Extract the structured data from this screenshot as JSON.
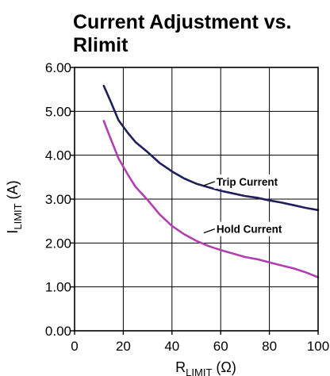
{
  "chart_data": {
    "type": "line",
    "title": "Current Adjustment vs. Rlimit",
    "xlabel": {
      "main": "R",
      "sub": "LIMIT",
      "unit": "(Ω)"
    },
    "ylabel": {
      "main": "I",
      "sub": "LIMIT",
      "unit": "(A)"
    },
    "xlim": [
      0,
      100
    ],
    "ylim": [
      0,
      6
    ],
    "x_ticks": [
      "0",
      "20",
      "40",
      "60",
      "80",
      "100"
    ],
    "y_ticks": [
      "0.00",
      "1.00",
      "2.00",
      "3.00",
      "4.00",
      "5.00",
      "6.00"
    ],
    "x_tick_values": [
      0,
      20,
      40,
      60,
      80,
      100
    ],
    "y_tick_values": [
      0,
      1,
      2,
      3,
      4,
      5,
      6
    ],
    "grid": true,
    "series": [
      {
        "name": "Trip Current",
        "color": "#1f1f5c",
        "label_at": [
          55,
          3.4
        ],
        "points": [
          [
            12,
            5.58
          ],
          [
            15,
            5.2
          ],
          [
            18,
            4.8
          ],
          [
            22,
            4.5
          ],
          [
            25,
            4.3
          ],
          [
            30,
            4.07
          ],
          [
            35,
            3.82
          ],
          [
            40,
            3.63
          ],
          [
            45,
            3.47
          ],
          [
            50,
            3.35
          ],
          [
            55,
            3.27
          ],
          [
            60,
            3.19
          ],
          [
            65,
            3.13
          ],
          [
            70,
            3.07
          ],
          [
            75,
            3.03
          ],
          [
            80,
            2.97
          ],
          [
            85,
            2.92
          ],
          [
            90,
            2.86
          ],
          [
            95,
            2.8
          ],
          [
            100,
            2.75
          ]
        ]
      },
      {
        "name": "Hold Current",
        "color": "#b040b0",
        "label_at": [
          55,
          2.32
        ],
        "points": [
          [
            12,
            4.78
          ],
          [
            15,
            4.35
          ],
          [
            18,
            3.93
          ],
          [
            22,
            3.55
          ],
          [
            25,
            3.28
          ],
          [
            30,
            2.98
          ],
          [
            35,
            2.65
          ],
          [
            40,
            2.39
          ],
          [
            45,
            2.2
          ],
          [
            50,
            2.05
          ],
          [
            55,
            1.93
          ],
          [
            60,
            1.84
          ],
          [
            65,
            1.76
          ],
          [
            70,
            1.68
          ],
          [
            75,
            1.63
          ],
          [
            80,
            1.56
          ],
          [
            85,
            1.49
          ],
          [
            90,
            1.42
          ],
          [
            95,
            1.33
          ],
          [
            100,
            1.22
          ]
        ]
      }
    ]
  }
}
